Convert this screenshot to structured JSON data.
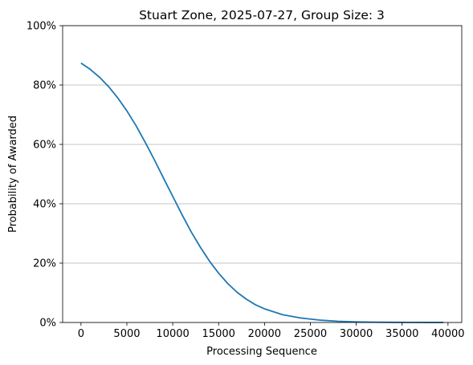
{
  "chart_data": {
    "type": "line",
    "title": "Stuart  Zone, 2025-07-27, Group Size: 3",
    "xlabel": "Processing Sequence",
    "ylabel": "Probability of Awarded",
    "xlim": [
      -2000,
      41500
    ],
    "ylim": [
      0,
      1
    ],
    "x_ticks": [
      0,
      5000,
      10000,
      15000,
      20000,
      25000,
      30000,
      35000,
      40000
    ],
    "x_tick_labels": [
      "0",
      "5000",
      "10000",
      "15000",
      "20000",
      "25000",
      "30000",
      "35000",
      "40000"
    ],
    "y_ticks": [
      0,
      0.2,
      0.4,
      0.6,
      0.8,
      1.0
    ],
    "y_tick_labels": [
      "0%",
      "20%",
      "40%",
      "60%",
      "80%",
      "100%"
    ],
    "grid": "y-major",
    "series": [
      {
        "color": "#1f77b4",
        "x": [
          0,
          1000,
          2000,
          3000,
          4000,
          5000,
          6000,
          7000,
          8000,
          9000,
          10000,
          11000,
          12000,
          13000,
          14000,
          15000,
          16000,
          17000,
          18000,
          19000,
          20000,
          22000,
          24000,
          26000,
          28000,
          30000,
          32000,
          34000,
          36000,
          38000,
          39500
        ],
        "values": [
          0.874,
          0.853,
          0.827,
          0.795,
          0.757,
          0.713,
          0.663,
          0.607,
          0.548,
          0.486,
          0.425,
          0.364,
          0.306,
          0.254,
          0.207,
          0.166,
          0.131,
          0.102,
          0.079,
          0.06,
          0.046,
          0.026,
          0.015,
          0.008,
          0.004,
          0.002,
          0.001,
          0.0005,
          0.0003,
          0.0002,
          0.0001
        ]
      }
    ]
  }
}
